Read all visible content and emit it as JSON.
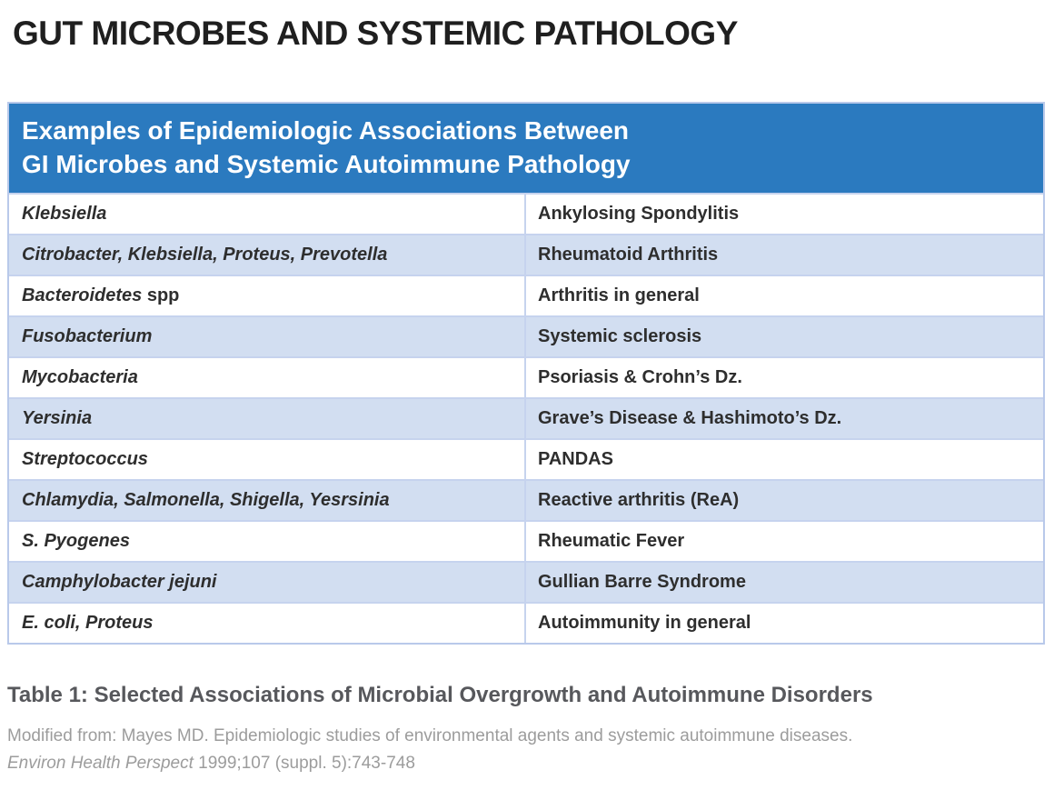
{
  "title": "GUT MICROBES AND SYSTEMIC PATHOLOGY",
  "table": {
    "header_line1": "Examples of Epidemiologic Associations Between",
    "header_line2": "GI Microbes and Systemic Autoimmune Pathology",
    "rows": [
      {
        "microbe": "Klebsiella",
        "microbe_suffix": "",
        "condition": "Ankylosing Spondylitis"
      },
      {
        "microbe": "Citrobacter, Klebsiella, Proteus, Prevotella",
        "microbe_suffix": "",
        "condition": "Rheumatoid Arthritis"
      },
      {
        "microbe": "Bacteroidetes",
        "microbe_suffix": " spp",
        "condition": "Arthritis in general"
      },
      {
        "microbe": "Fusobacterium",
        "microbe_suffix": "",
        "condition": "Systemic sclerosis"
      },
      {
        "microbe": "Mycobacteria",
        "microbe_suffix": "",
        "condition": "Psoriasis & Crohn’s Dz."
      },
      {
        "microbe": "Yersinia",
        "microbe_suffix": "",
        "condition": "Grave’s Disease & Hashimoto’s Dz."
      },
      {
        "microbe": "Streptococcus",
        "microbe_suffix": "",
        "condition": "PANDAS"
      },
      {
        "microbe": "Chlamydia, Salmonella, Shigella, Yesrsinia",
        "microbe_suffix": "",
        "condition": "Reactive arthritis (ReA)"
      },
      {
        "microbe": "S. Pyogenes",
        "microbe_suffix": "",
        "condition": "Rheumatic Fever"
      },
      {
        "microbe": "Camphylobacter jejuni",
        "microbe_suffix": "",
        "condition": "Gullian Barre Syndrome"
      },
      {
        "microbe": "E. coli, Proteus",
        "microbe_suffix": "",
        "condition": "Autoimmunity in general"
      }
    ]
  },
  "caption": "Table 1: Selected Associations of Microbial Overgrowth and Autoimmune Disorders",
  "source": {
    "line1": "Modified from: Mayes MD. Epidemiologic studies of environmental agents and systemic autoimmune diseases.",
    "journal": "Environ Health Perspect",
    "citation": " 1999;107 (suppl. 5):743-748"
  },
  "colors": {
    "header_bg": "#2b7abf",
    "header_text": "#ffffff",
    "row_alt_bg": "#d2def1",
    "table_border": "#b9c9ea",
    "title_text": "#1f1f1f",
    "cell_text": "#2e2e2e",
    "caption_text": "#57585c",
    "source_text": "#9c9c9c"
  }
}
